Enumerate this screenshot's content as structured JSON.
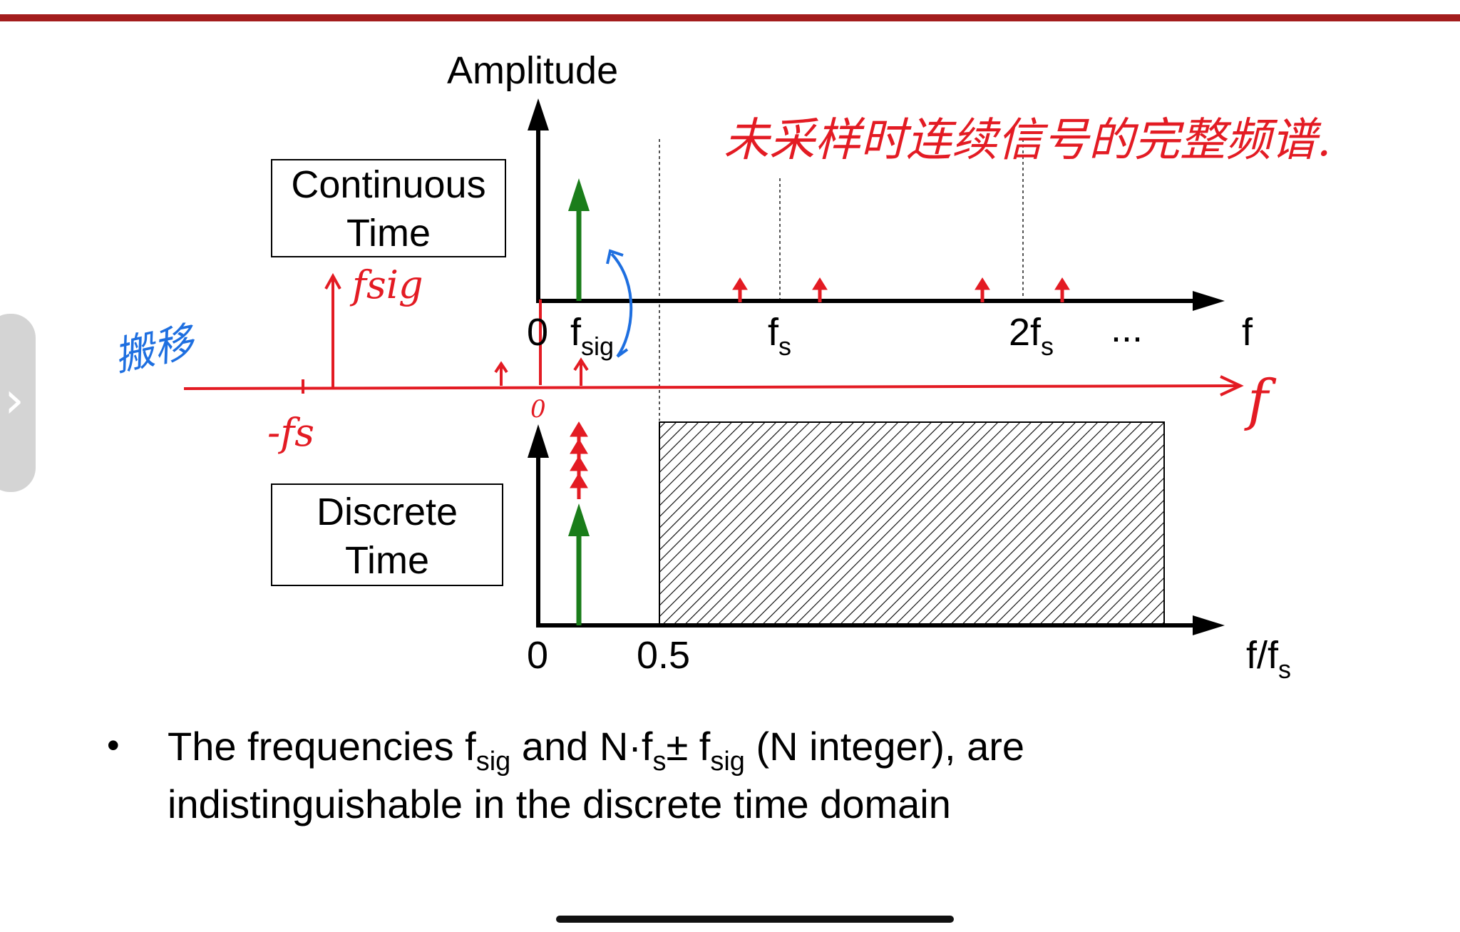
{
  "colors": {
    "top_bar": "#a31d1d",
    "home_indicator": "#111111",
    "green_arrow": "#1a7d1a",
    "red_ink": "#e31b23",
    "blue_ink": "#1e6fe0",
    "axis": "#000000"
  },
  "amplitude_label": "Amplitude",
  "continuous_box": {
    "line1": "Continuous",
    "line2": "Time"
  },
  "discrete_box": {
    "line1": "Discrete",
    "line2": "Time"
  },
  "top_axis": {
    "zero": "0",
    "fsig_main": "f",
    "fsig_sub": "sig",
    "fs_main": "f",
    "fs_sub": "s",
    "twofs_main": "2f",
    "twofs_sub": "s",
    "ellipsis": "...",
    "axis_label": "f"
  },
  "bottom_axis": {
    "zero": "0",
    "half": "0.5",
    "label_main": "f/f",
    "label_sub": "s"
  },
  "annotations": {
    "chinese_note": "未采样时连续信号的完整频谱.",
    "blue_note": "搬移",
    "fsig_note": "fsig",
    "neg_fs_note": "-fs",
    "zero_note": "0",
    "f_note": "f"
  },
  "bullet": {
    "dot": "•",
    "line1_a": "The frequencies f",
    "line1_sub1": "sig",
    "line1_b": " and N·f",
    "line1_sub2": "s",
    "line1_c": "± f",
    "line1_sub3": "sig",
    "line1_d": " (N integer), are",
    "line2": "indistinguishable in the discrete time domain"
  }
}
